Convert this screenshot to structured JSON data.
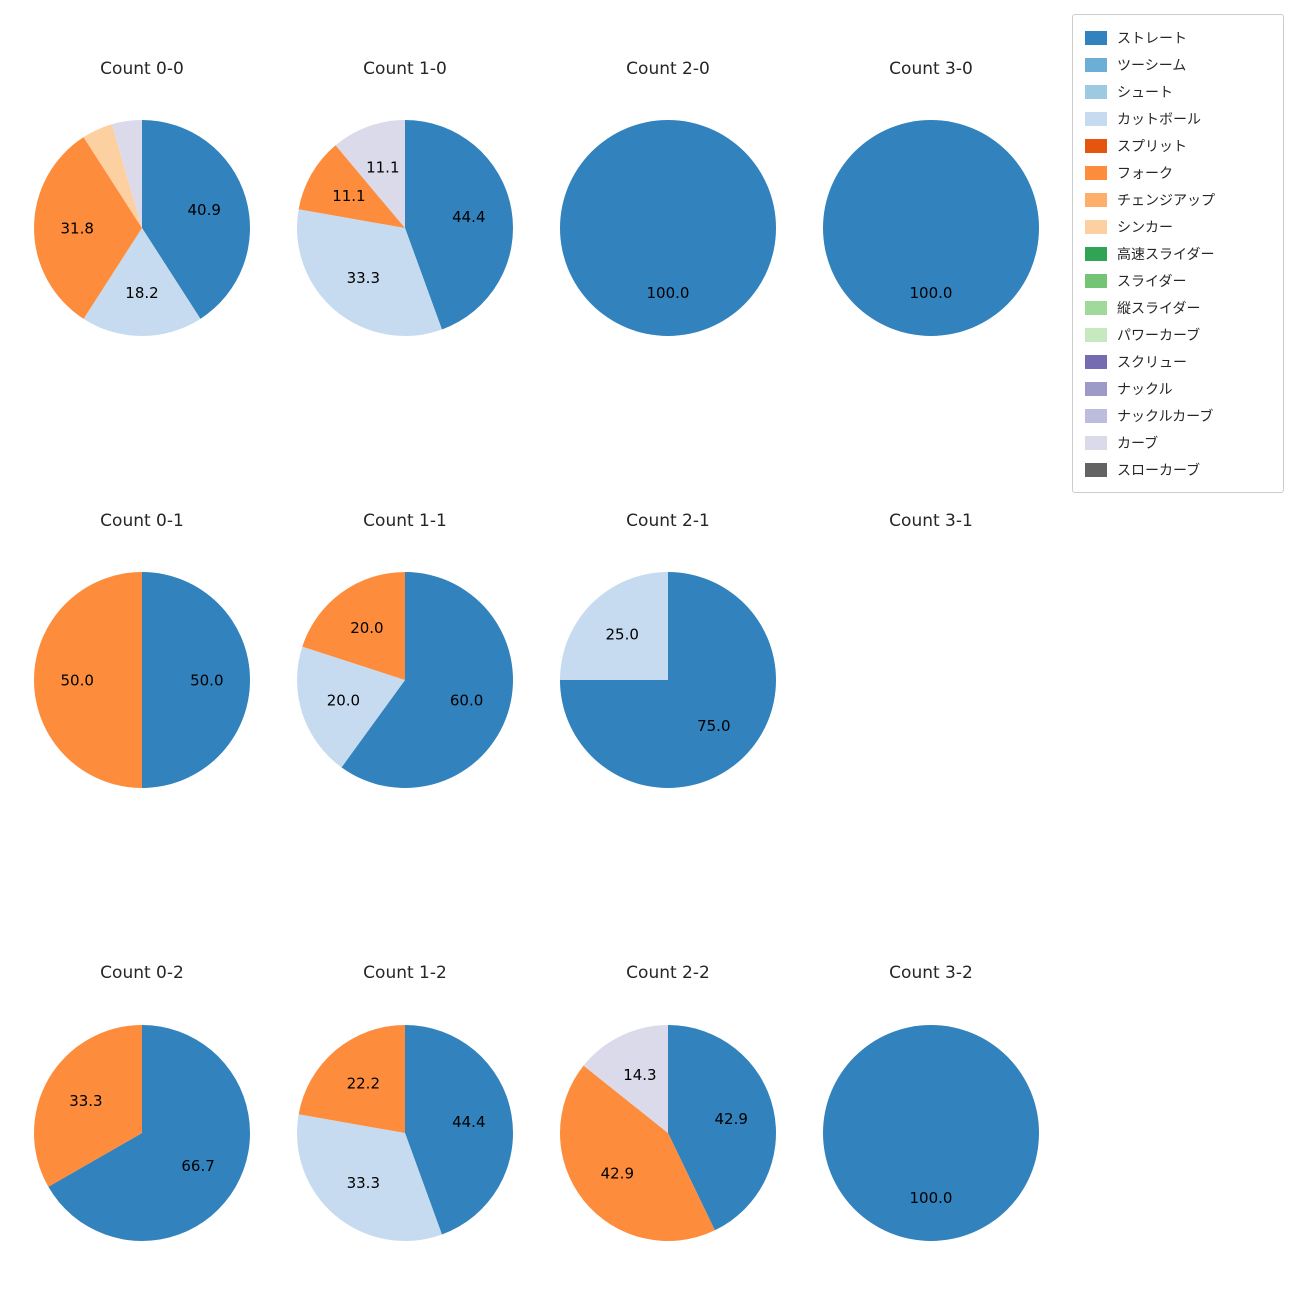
{
  "page": {
    "background": "#ffffff"
  },
  "legend": {
    "position": "top-right",
    "items": [
      {
        "label": "ストレート",
        "color": "#3182bd"
      },
      {
        "label": "ツーシーム",
        "color": "#6baed6"
      },
      {
        "label": "シュート",
        "color": "#9ecae1"
      },
      {
        "label": "カットボール",
        "color": "#c6dbef"
      },
      {
        "label": "スプリット",
        "color": "#e6550d"
      },
      {
        "label": "フォーク",
        "color": "#fd8d3c"
      },
      {
        "label": "チェンジアップ",
        "color": "#fdae6b"
      },
      {
        "label": "シンカー",
        "color": "#fdd0a2"
      },
      {
        "label": "高速スライダー",
        "color": "#31a354"
      },
      {
        "label": "スライダー",
        "color": "#74c476"
      },
      {
        "label": "縦スライダー",
        "color": "#a1d99b"
      },
      {
        "label": "パワーカーブ",
        "color": "#c7e9c0"
      },
      {
        "label": "スクリュー",
        "color": "#756bb1"
      },
      {
        "label": "ナックル",
        "color": "#9e9ac8"
      },
      {
        "label": "ナックルカーブ",
        "color": "#bcbddc"
      },
      {
        "label": "カーブ",
        "color": "#dadaeb"
      },
      {
        "label": "スローカーブ",
        "color": "#636363"
      }
    ]
  },
  "chart_data": [
    {
      "type": "pie",
      "title": "Count 0-0",
      "row": 0,
      "col": 0,
      "start_angle": 90,
      "clockwise": true,
      "pct_distance": 0.6,
      "slices": [
        {
          "label": "ストレート",
          "value": 40.9,
          "color": "#3182bd",
          "show_pct": true
        },
        {
          "label": "カットボール",
          "value": 18.2,
          "color": "#c6dbef",
          "show_pct": true
        },
        {
          "label": "フォーク",
          "value": 31.8,
          "color": "#fd8d3c",
          "show_pct": true
        },
        {
          "label": "シンカー",
          "value": 4.6,
          "color": "#fdd0a2",
          "show_pct": false
        },
        {
          "label": "カーブ",
          "value": 4.5,
          "color": "#dadaeb",
          "show_pct": false
        }
      ]
    },
    {
      "type": "pie",
      "title": "Count 1-0",
      "row": 0,
      "col": 1,
      "start_angle": 90,
      "clockwise": true,
      "pct_distance": 0.6,
      "slices": [
        {
          "label": "ストレート",
          "value": 44.4,
          "color": "#3182bd",
          "show_pct": true
        },
        {
          "label": "カットボール",
          "value": 33.3,
          "color": "#c6dbef",
          "show_pct": true
        },
        {
          "label": "フォーク",
          "value": 11.1,
          "color": "#fd8d3c",
          "show_pct": true
        },
        {
          "label": "カーブ",
          "value": 11.1,
          "color": "#dadaeb",
          "show_pct": true
        }
      ]
    },
    {
      "type": "pie",
      "title": "Count 2-0",
      "row": 0,
      "col": 2,
      "start_angle": 90,
      "clockwise": true,
      "pct_distance": 0.6,
      "slices": [
        {
          "label": "ストレート",
          "value": 100.0,
          "color": "#3182bd",
          "show_pct": true
        }
      ]
    },
    {
      "type": "pie",
      "title": "Count 3-0",
      "row": 0,
      "col": 3,
      "start_angle": 90,
      "clockwise": true,
      "pct_distance": 0.6,
      "slices": [
        {
          "label": "ストレート",
          "value": 100.0,
          "color": "#3182bd",
          "show_pct": true
        }
      ]
    },
    {
      "type": "pie",
      "title": "Count 0-1",
      "row": 1,
      "col": 0,
      "start_angle": 90,
      "clockwise": true,
      "pct_distance": 0.6,
      "slices": [
        {
          "label": "ストレート",
          "value": 50.0,
          "color": "#3182bd",
          "show_pct": true
        },
        {
          "label": "フォーク",
          "value": 50.0,
          "color": "#fd8d3c",
          "show_pct": true
        }
      ]
    },
    {
      "type": "pie",
      "title": "Count 1-1",
      "row": 1,
      "col": 1,
      "start_angle": 90,
      "clockwise": true,
      "pct_distance": 0.6,
      "slices": [
        {
          "label": "ストレート",
          "value": 60.0,
          "color": "#3182bd",
          "show_pct": true
        },
        {
          "label": "カットボール",
          "value": 20.0,
          "color": "#c6dbef",
          "show_pct": true
        },
        {
          "label": "フォーク",
          "value": 20.0,
          "color": "#fd8d3c",
          "show_pct": true
        }
      ]
    },
    {
      "type": "pie",
      "title": "Count 2-1",
      "row": 1,
      "col": 2,
      "start_angle": 90,
      "clockwise": true,
      "pct_distance": 0.6,
      "slices": [
        {
          "label": "ストレート",
          "value": 75.0,
          "color": "#3182bd",
          "show_pct": true
        },
        {
          "label": "カットボール",
          "value": 25.0,
          "color": "#c6dbef",
          "show_pct": true
        }
      ]
    },
    {
      "type": "pie",
      "title": "Count 3-1",
      "row": 1,
      "col": 3,
      "start_angle": 90,
      "clockwise": true,
      "pct_distance": 0.6,
      "slices": []
    },
    {
      "type": "pie",
      "title": "Count 0-2",
      "row": 2,
      "col": 0,
      "start_angle": 90,
      "clockwise": true,
      "pct_distance": 0.6,
      "slices": [
        {
          "label": "ストレート",
          "value": 66.7,
          "color": "#3182bd",
          "show_pct": true
        },
        {
          "label": "フォーク",
          "value": 33.3,
          "color": "#fd8d3c",
          "show_pct": true
        }
      ]
    },
    {
      "type": "pie",
      "title": "Count 1-2",
      "row": 2,
      "col": 1,
      "start_angle": 90,
      "clockwise": true,
      "pct_distance": 0.6,
      "slices": [
        {
          "label": "ストレート",
          "value": 44.4,
          "color": "#3182bd",
          "show_pct": true
        },
        {
          "label": "カットボール",
          "value": 33.3,
          "color": "#c6dbef",
          "show_pct": true
        },
        {
          "label": "フォーク",
          "value": 22.2,
          "color": "#fd8d3c",
          "show_pct": true
        }
      ]
    },
    {
      "type": "pie",
      "title": "Count 2-2",
      "row": 2,
      "col": 2,
      "start_angle": 90,
      "clockwise": true,
      "pct_distance": 0.6,
      "slices": [
        {
          "label": "ストレート",
          "value": 42.9,
          "color": "#3182bd",
          "show_pct": true
        },
        {
          "label": "フォーク",
          "value": 42.9,
          "color": "#fd8d3c",
          "show_pct": true
        },
        {
          "label": "カーブ",
          "value": 14.3,
          "color": "#dadaeb",
          "show_pct": true
        }
      ]
    },
    {
      "type": "pie",
      "title": "Count 3-2",
      "row": 2,
      "col": 3,
      "start_angle": 90,
      "clockwise": true,
      "pct_distance": 0.6,
      "slices": [
        {
          "label": "ストレート",
          "value": 100.0,
          "color": "#3182bd",
          "show_pct": true
        }
      ]
    }
  ]
}
